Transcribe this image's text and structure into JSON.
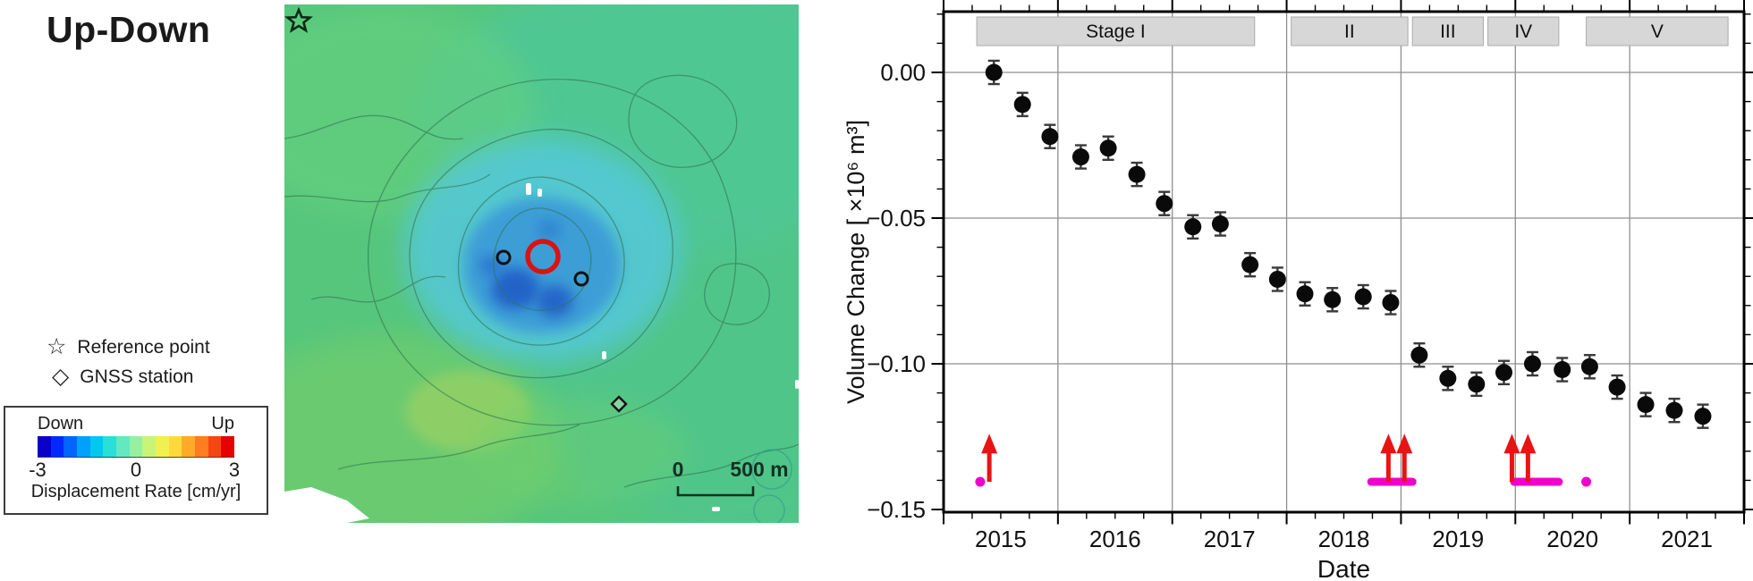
{
  "left_panel": {
    "title": "Up-Down",
    "legend": {
      "star_char": "☆",
      "reference_point": "Reference point",
      "diamond_char": "◇",
      "gnss_station": "GNSS station"
    },
    "colorbar": {
      "down_label": "Down",
      "up_label": "Up",
      "ticks": [
        "-3",
        "0",
        "3"
      ],
      "caption": "Displacement Rate [cm/yr]",
      "colors": [
        "#0a00c8",
        "#0028ff",
        "#0064ff",
        "#00a0ff",
        "#00c8f0",
        "#28e0d8",
        "#64e8c0",
        "#96f0a0",
        "#c8f478",
        "#f0f050",
        "#ffd93c",
        "#ffaa28",
        "#ff7d1e",
        "#f54713",
        "#e60000"
      ]
    },
    "map": {
      "scale_zero": "0",
      "scale_label": "500 m"
    }
  },
  "chart_data": {
    "type": "scatter",
    "title": "",
    "xlabel": "Date",
    "ylabel": "Volume Change [ ×10⁶ m³]",
    "xlim": [
      2015,
      2022
    ],
    "ylim": [
      -0.151,
      0.021
    ],
    "grid": {
      "x_years": [
        2016,
        2017,
        2018,
        2019,
        2020,
        2021
      ],
      "y_values": [
        0,
        -0.05,
        -0.1
      ]
    },
    "x_ticks": [
      {
        "v": 2015.5,
        "label": "2015"
      },
      {
        "v": 2016.5,
        "label": "2016"
      },
      {
        "v": 2017.5,
        "label": "2017"
      },
      {
        "v": 2018.5,
        "label": "2018"
      },
      {
        "v": 2019.5,
        "label": "2019"
      },
      {
        "v": 2020.5,
        "label": "2020"
      },
      {
        "v": 2021.5,
        "label": "2021"
      }
    ],
    "y_ticks": [
      {
        "v": 0,
        "label": "0.00"
      },
      {
        "v": -0.05,
        "label": "−0.05"
      },
      {
        "v": -0.1,
        "label": "−0.10"
      },
      {
        "v": -0.15,
        "label": "−0.15"
      }
    ],
    "stages": [
      {
        "label": "Stage I",
        "start": 2015.29,
        "end": 2017.72
      },
      {
        "label": "II",
        "start": 2018.04,
        "end": 2019.06
      },
      {
        "label": "III",
        "start": 2019.1,
        "end": 2019.72
      },
      {
        "label": "IV",
        "start": 2019.76,
        "end": 2020.38
      },
      {
        "label": "V",
        "start": 2020.62,
        "end": 2021.86
      }
    ],
    "points": [
      [
        2015.44,
        0.0
      ],
      [
        2015.69,
        -0.011
      ],
      [
        2015.93,
        -0.022
      ],
      [
        2016.2,
        -0.029
      ],
      [
        2016.44,
        -0.026
      ],
      [
        2016.69,
        -0.035
      ],
      [
        2016.93,
        -0.045
      ],
      [
        2017.18,
        -0.053
      ],
      [
        2017.42,
        -0.052
      ],
      [
        2017.68,
        -0.066
      ],
      [
        2017.92,
        -0.071
      ],
      [
        2018.16,
        -0.076
      ],
      [
        2018.4,
        -0.078
      ],
      [
        2018.67,
        -0.077
      ],
      [
        2018.91,
        -0.079
      ],
      [
        2019.16,
        -0.097
      ],
      [
        2019.41,
        -0.105
      ],
      [
        2019.66,
        -0.107
      ],
      [
        2019.9,
        -0.103
      ],
      [
        2020.15,
        -0.1
      ],
      [
        2020.41,
        -0.102
      ],
      [
        2020.65,
        -0.101
      ],
      [
        2020.89,
        -0.108
      ],
      [
        2021.14,
        -0.114
      ],
      [
        2021.39,
        -0.116
      ],
      [
        2021.64,
        -0.118
      ]
    ],
    "point_error": 0.004,
    "arrows": [
      2015.4,
      2018.89,
      2019.03,
      2019.97,
      2020.11
    ],
    "arrow_tip_value": -0.124,
    "arrow_base_value": -0.1405,
    "magenta_bars": [
      [
        2018.74,
        2019.1
      ],
      [
        2019.99,
        2020.38
      ]
    ],
    "magenta_dots": [
      2015.32,
      2020.62
    ],
    "band_value": -0.1405,
    "colors": {
      "point": "#0a0a0a",
      "error": "#3a3a3a",
      "arrow": "#e81414",
      "magenta": "#ee00cc",
      "grid": "#8f8f8f",
      "stage_fill": "#d7d7d7",
      "stage_border": "#ababab"
    }
  }
}
